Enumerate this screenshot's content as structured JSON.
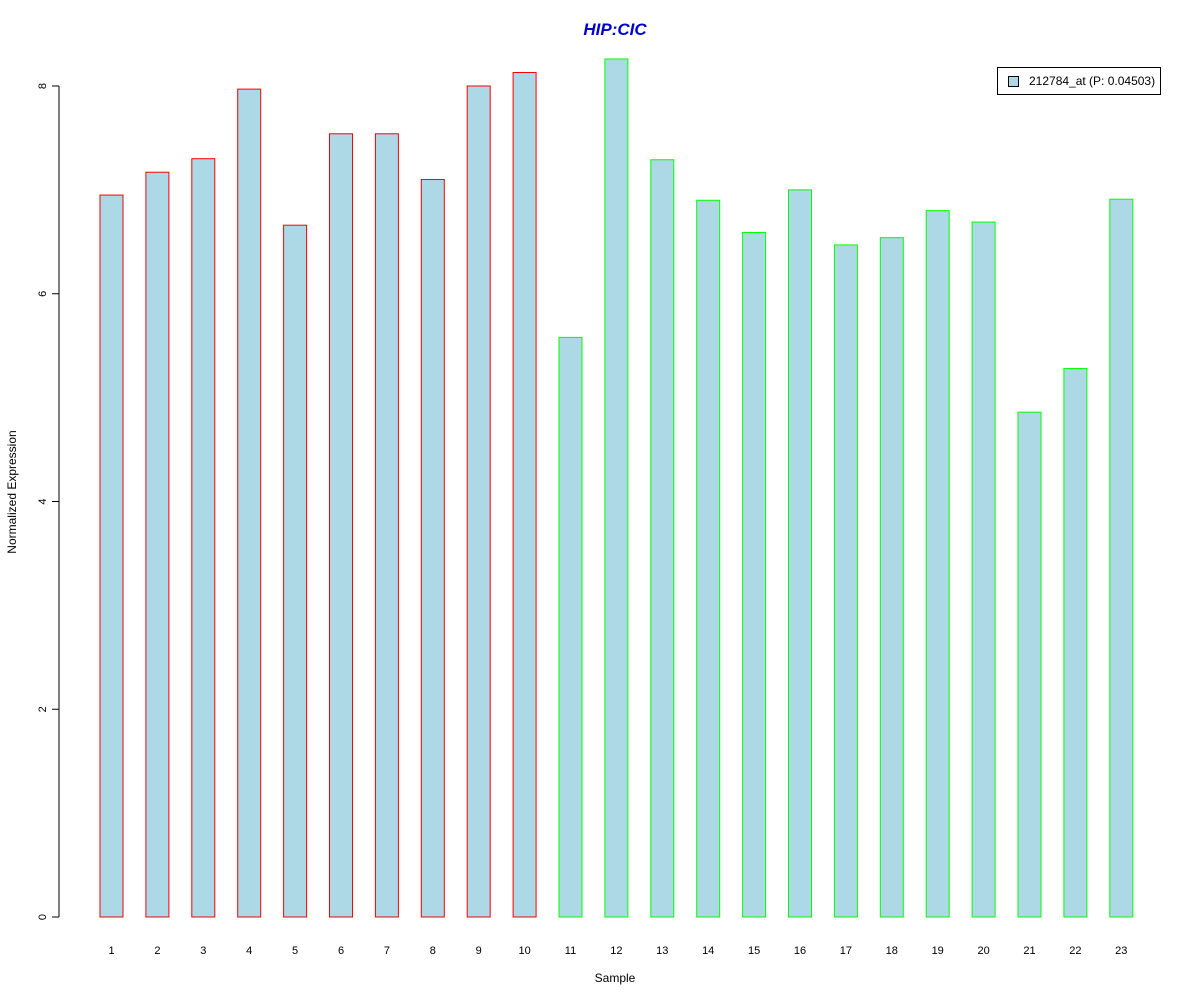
{
  "chart_data": {
    "type": "bar",
    "title": "HIP:CIC",
    "xlabel": "Sample",
    "ylabel": "Normalized Expression",
    "categories": [
      "1",
      "2",
      "3",
      "4",
      "5",
      "6",
      "7",
      "8",
      "9",
      "10",
      "11",
      "12",
      "13",
      "14",
      "15",
      "16",
      "17",
      "18",
      "19",
      "20",
      "21",
      "22",
      "23"
    ],
    "values": [
      6.95,
      7.17,
      7.3,
      7.97,
      6.66,
      7.54,
      7.54,
      7.1,
      8.0,
      8.13,
      5.58,
      8.26,
      7.29,
      6.9,
      6.59,
      7.0,
      6.47,
      6.54,
      6.8,
      6.69,
      4.86,
      5.28,
      6.91
    ],
    "groups": [
      "red",
      "red",
      "red",
      "red",
      "red",
      "red",
      "red",
      "red",
      "red",
      "red",
      "green",
      "green",
      "green",
      "green",
      "green",
      "green",
      "green",
      "green",
      "green",
      "green",
      "green",
      "green",
      "green"
    ],
    "yticks": [
      0,
      2,
      4,
      6,
      8
    ],
    "ylim": [
      0,
      8.26
    ],
    "grid": false,
    "legend": {
      "position": "top-right",
      "entries": [
        {
          "label": "212784_at (P: 0.04503)",
          "color": "#add8e6"
        }
      ]
    },
    "colors": {
      "title": "#0000cd",
      "bar_fill": "#add8e6",
      "border_red": "#ff0000",
      "border_green": "#00ff00",
      "axis": "#000000"
    }
  }
}
